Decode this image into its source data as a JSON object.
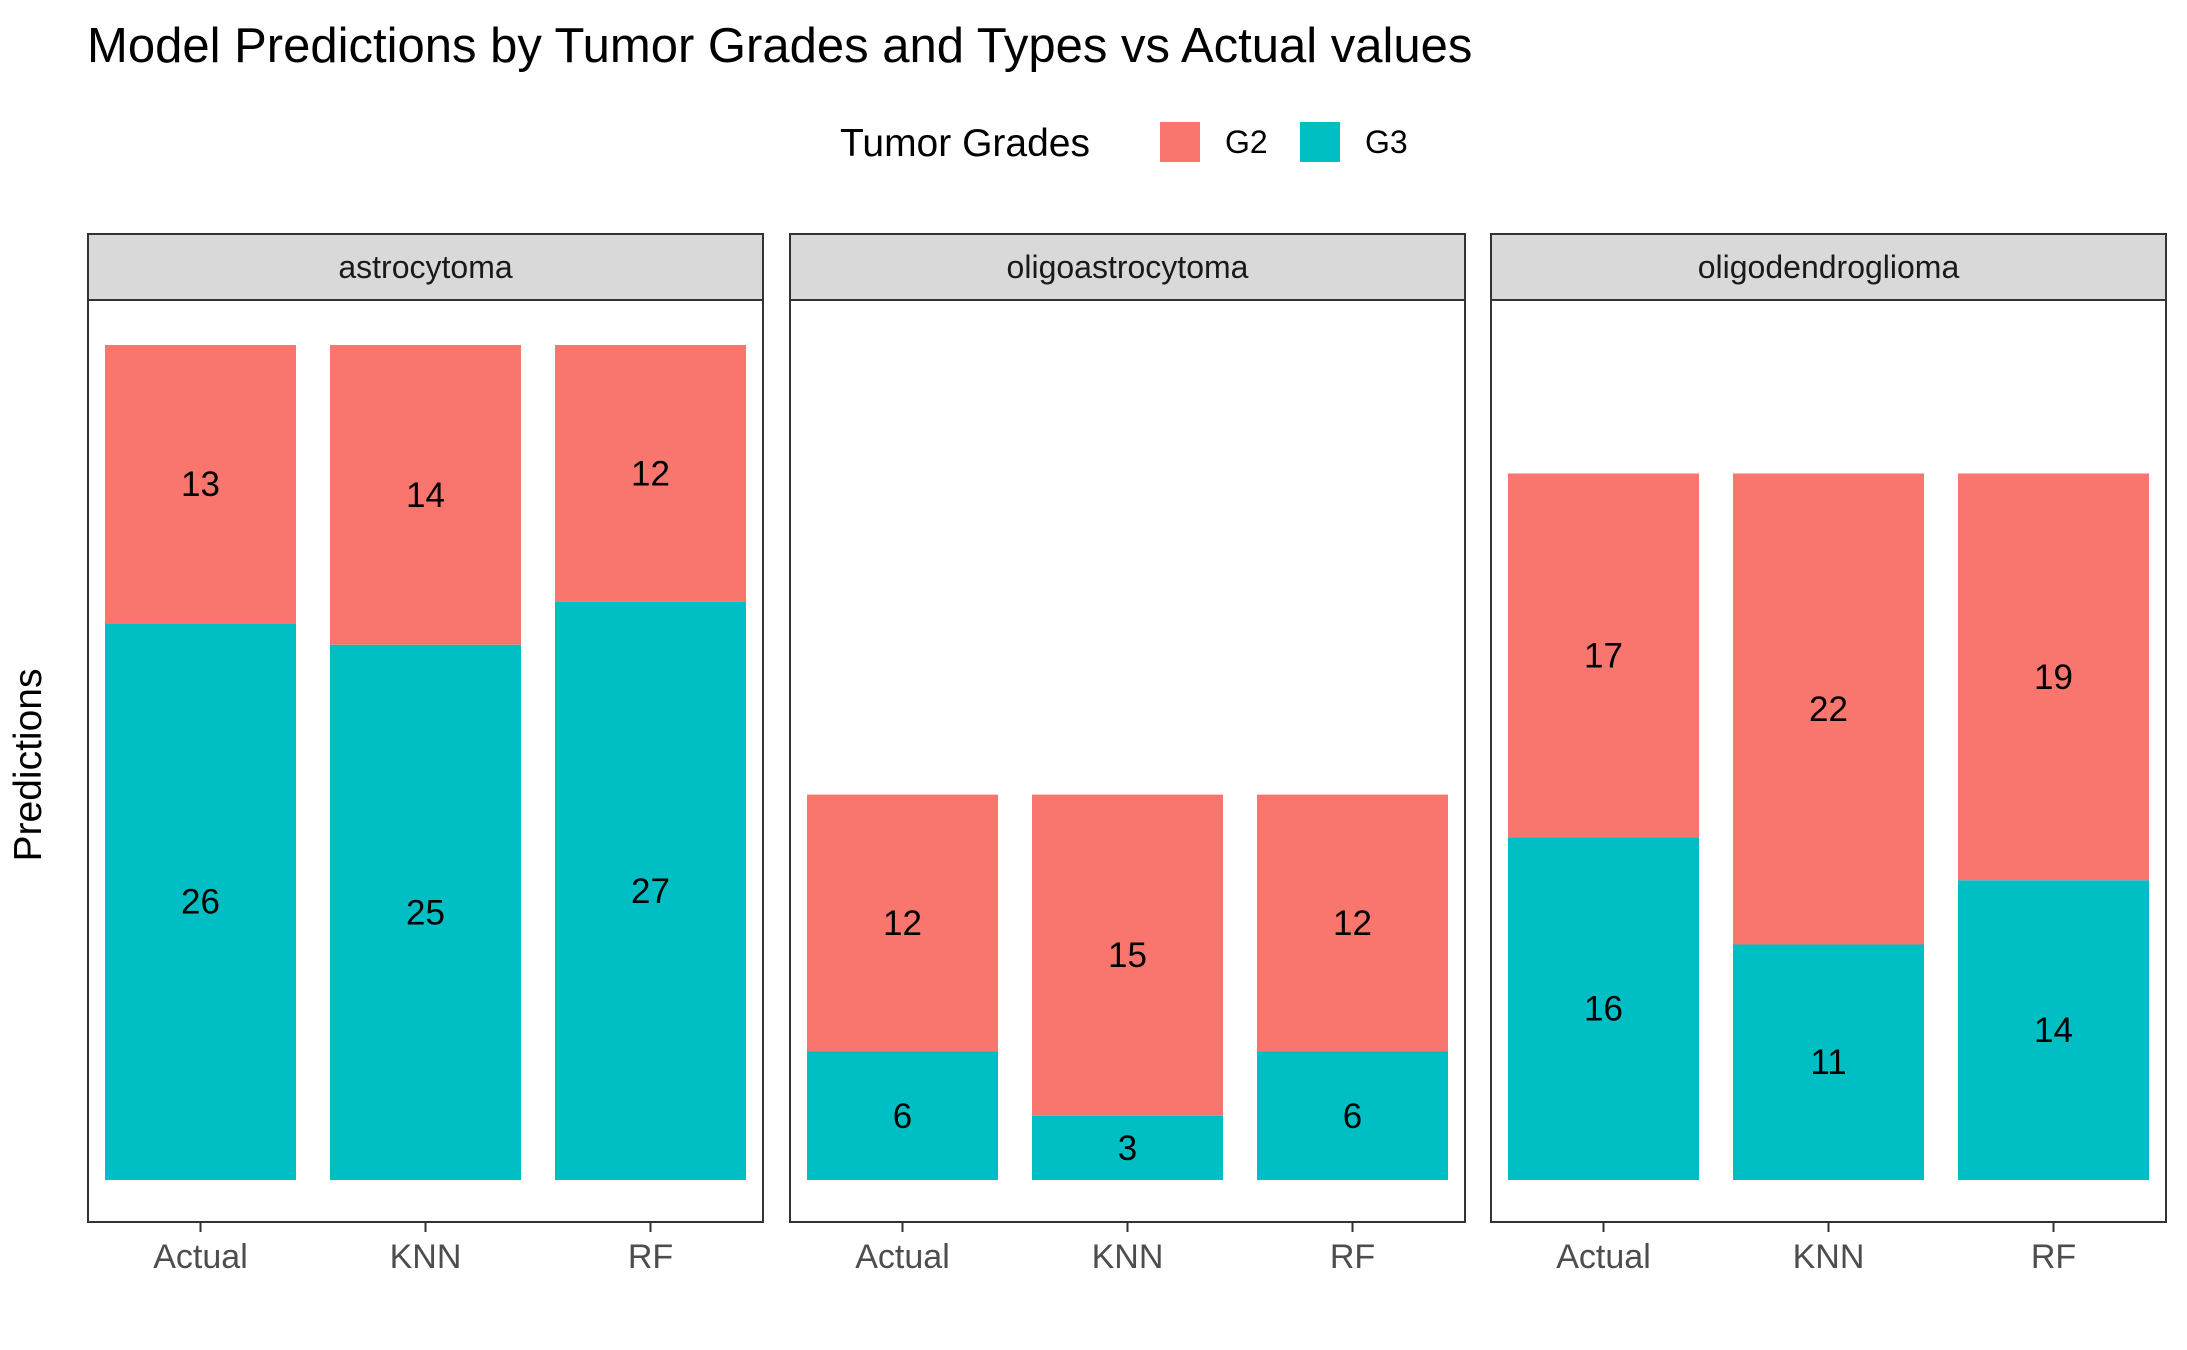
{
  "colors": {
    "G2": "#F8766D",
    "G3": "#00BFC4"
  },
  "chart_data": {
    "type": "bar",
    "stacked": true,
    "title": "Model Predictions by Tumor Grades and Types vs Actual values",
    "xlabel": "",
    "ylabel": "Predictions",
    "legend": {
      "title": "Tumor Grades",
      "position": "top",
      "entries": [
        "G2",
        "G3"
      ]
    },
    "grid": false,
    "y_axis_ticks_shown": false,
    "facets": [
      {
        "name": "astrocytoma",
        "categories": [
          "Actual",
          "KNN",
          "RF"
        ],
        "series": [
          {
            "name": "G2",
            "values": [
              13,
              14,
              12
            ]
          },
          {
            "name": "G3",
            "values": [
              26,
              25,
              27
            ]
          }
        ]
      },
      {
        "name": "oligoastrocytoma",
        "categories": [
          "Actual",
          "KNN",
          "RF"
        ],
        "series": [
          {
            "name": "G2",
            "values": [
              12,
              15,
              12
            ]
          },
          {
            "name": "G3",
            "values": [
              6,
              3,
              6
            ]
          }
        ]
      },
      {
        "name": "oligodendroglioma",
        "categories": [
          "Actual",
          "KNN",
          "RF"
        ],
        "series": [
          {
            "name": "G2",
            "values": [
              17,
              22,
              19
            ]
          },
          {
            "name": "G3",
            "values": [
              16,
              11,
              14
            ]
          }
        ]
      }
    ]
  }
}
